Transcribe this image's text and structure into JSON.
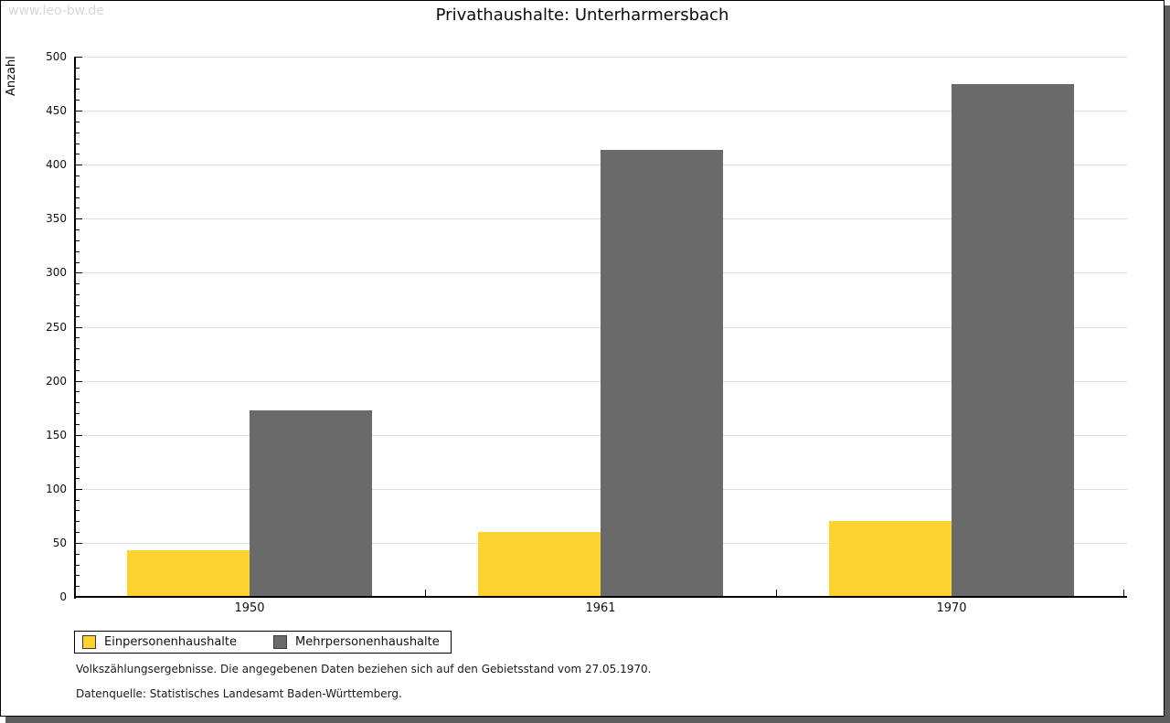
{
  "watermark": "www.leo-bw.de",
  "title": "Privathaushalte: Unterharmersbach",
  "chart_data": {
    "type": "bar",
    "title": "Privathaushalte: Unterharmersbach",
    "categories": [
      "1950",
      "1961",
      "1970"
    ],
    "series": [
      {
        "name": "Einpersonenhaushalte",
        "color": "#fcd330",
        "values": [
          43,
          60,
          70
        ]
      },
      {
        "name": "Mehrpersonenhaushalte",
        "color": "#6a6a6a",
        "values": [
          173,
          414,
          475
        ]
      }
    ],
    "xlabel": "",
    "ylabel": "Anzahl",
    "ylim": [
      0,
      500
    ],
    "ytick_step": 50,
    "yminor_step": 10,
    "grid": true,
    "legend_position": "bottom-left"
  },
  "footnotes": [
    "Volkszählungsergebnisse. Die angegebenen Daten beziehen sich auf den Gebietsstand vom 27.05.1970.",
    "Datenquelle: Statistisches Landesamt Baden-Württemberg."
  ],
  "colors": {
    "background": "#ffffff",
    "grid": "#e0e0e0",
    "axis": "#000000",
    "watermark": "#d8d8d8",
    "shadow": "#5e5e5e",
    "bar_yellow": "#fcd330",
    "bar_gray": "#6a6a6a"
  }
}
